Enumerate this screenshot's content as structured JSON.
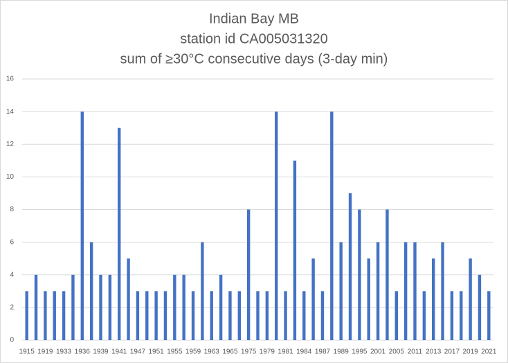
{
  "chart_data": {
    "type": "bar",
    "title": [
      "Indian Bay MB",
      "station id CA005031320",
      "sum of ≥30°C consecutive days (3-day min)"
    ],
    "categories": [
      "1915",
      null,
      "1919",
      null,
      "1933",
      null,
      "1936",
      null,
      "1939",
      null,
      "1941",
      null,
      "1947",
      null,
      "1951",
      null,
      "1955",
      null,
      "1959",
      null,
      "1963",
      null,
      "1965",
      null,
      "1975",
      null,
      "1979",
      null,
      "1981",
      null,
      "1984",
      null,
      "1987",
      null,
      "1989",
      null,
      "1995",
      null,
      "2001",
      null,
      "2005",
      null,
      "2011",
      null,
      "2013",
      null,
      "2017",
      null,
      "2019",
      null,
      "2021"
    ],
    "values": [
      3,
      4,
      3,
      3,
      3,
      4,
      14,
      6,
      4,
      4,
      13,
      5,
      3,
      3,
      3,
      3,
      4,
      4,
      3,
      6,
      3,
      4,
      3,
      3,
      8,
      3,
      3,
      14,
      3,
      11,
      3,
      5,
      3,
      14,
      6,
      9,
      8,
      5,
      6,
      8,
      3,
      6,
      6,
      3,
      5,
      6,
      3,
      3,
      5,
      4,
      3
    ],
    "color": "#4472c4",
    "ylim": [
      0,
      16
    ],
    "yticks": [
      0,
      2,
      4,
      6,
      8,
      10,
      12,
      14,
      16
    ],
    "grid": true
  }
}
